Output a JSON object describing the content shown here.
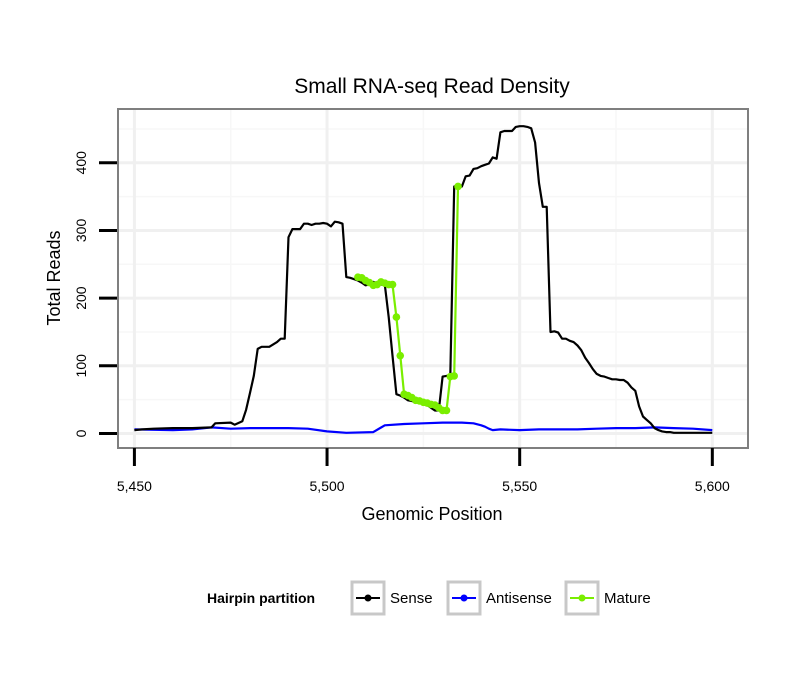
{
  "chart_data": {
    "type": "line",
    "title": "Small RNA-seq Read Density",
    "xlabel": "Genomic Position",
    "ylabel": "Total Reads",
    "xlim": [
      5446,
      5609
    ],
    "ylim": [
      -20,
      478
    ],
    "x_ticks": [
      5450,
      5500,
      5550,
      5600
    ],
    "x_tick_labels": [
      "5,450",
      "5,500",
      "5,550",
      "5,600"
    ],
    "y_ticks": [
      0,
      100,
      200,
      300,
      400
    ],
    "y_tick_labels": [
      "0",
      "100",
      "200",
      "300",
      "400"
    ],
    "grid": true,
    "legend": {
      "title": "Hairpin partition",
      "position": "bottom",
      "entries": [
        "Sense",
        "Antisense",
        "Mature"
      ]
    },
    "series": [
      {
        "name": "Sense",
        "color": "#000000",
        "x": [
          5450,
          5452,
          5455,
          5460,
          5465,
          5470,
          5471,
          5475,
          5476,
          5478,
          5479,
          5480,
          5481,
          5482,
          5483,
          5485,
          5487,
          5488,
          5489,
          5490,
          5491,
          5492,
          5493,
          5494,
          5495,
          5496,
          5497,
          5498,
          5499,
          5500,
          5501,
          5502,
          5503,
          5504,
          5505,
          5506,
          5508,
          5509,
          5510,
          5511,
          5512,
          5513,
          5514,
          5515,
          5516,
          5517,
          5518,
          5519,
          5520,
          5521,
          5522,
          5523,
          5524,
          5525,
          5526,
          5527,
          5528,
          5529,
          5530,
          5531,
          5532,
          5533,
          5534,
          5535,
          5536,
          5537,
          5538,
          5539,
          5540,
          5541,
          5542,
          5543,
          5544,
          5545,
          5546,
          5547,
          5548,
          5549,
          5550,
          5551,
          5552,
          5553,
          5554,
          5555,
          5556,
          5557,
          5558,
          5559,
          5560,
          5561,
          5562,
          5563,
          5564,
          5565,
          5566,
          5567,
          5568,
          5569,
          5570,
          5571,
          5572,
          5573,
          5574,
          5575,
          5576,
          5577,
          5578,
          5579,
          5580,
          5581,
          5582,
          5583,
          5584,
          5585,
          5586,
          5587,
          5588,
          5589,
          5590,
          5592,
          5595,
          5598,
          5600
        ],
        "y": [
          5,
          6,
          7,
          8,
          8,
          9,
          15,
          16,
          13,
          18,
          35,
          60,
          85,
          125,
          128,
          128,
          135,
          140,
          140,
          290,
          302,
          302,
          302,
          310,
          310,
          308,
          310,
          310,
          311,
          310,
          306,
          313,
          312,
          310,
          231,
          230,
          226,
          223,
          219,
          220,
          224,
          222,
          220,
          220,
          172,
          115,
          58,
          56,
          53,
          49,
          48,
          46,
          45,
          43,
          42,
          38,
          34,
          34,
          84,
          85,
          85,
          365,
          364,
          365,
          380,
          381,
          391,
          392,
          395,
          397,
          399,
          408,
          406,
          445,
          447,
          447,
          447,
          453,
          454,
          454,
          453,
          451,
          430,
          370,
          335,
          335,
          150,
          151,
          149,
          140,
          140,
          137,
          135,
          130,
          123,
          112,
          104,
          95,
          88,
          85,
          84,
          82,
          80,
          80,
          79,
          79,
          75,
          68,
          63,
          40,
          25,
          20,
          15,
          8,
          5,
          3,
          2,
          2,
          1,
          1,
          1,
          1,
          1
        ]
      },
      {
        "name": "Antisense",
        "color": "#0000ff",
        "x": [
          5450,
          5460,
          5465,
          5470,
          5475,
          5480,
          5490,
          5495,
          5500,
          5505,
          5512,
          5515,
          5520,
          5525,
          5530,
          5535,
          5538,
          5540,
          5541,
          5542,
          5543,
          5545,
          5550,
          5555,
          5560,
          5565,
          5570,
          5575,
          5580,
          5585,
          5590,
          5595,
          5600
        ],
        "y": [
          6,
          5,
          6,
          9,
          7,
          8,
          8,
          7,
          3,
          1,
          2,
          12,
          14,
          15,
          16,
          16,
          15,
          12,
          10,
          7,
          5,
          6,
          5,
          6,
          6,
          6,
          7,
          8,
          8,
          9,
          8,
          7,
          5
        ]
      },
      {
        "name": "Mature",
        "color": "#7aee00",
        "marker": "circle",
        "x": [
          5508,
          5509,
          5510,
          5511,
          5512,
          5513,
          5514,
          5515,
          5516,
          5517,
          5518,
          5519,
          5520,
          5521,
          5522,
          5523,
          5524,
          5525,
          5526,
          5527,
          5528,
          5529,
          5530,
          5531,
          5532,
          5533,
          5534
        ],
        "y": [
          231,
          230,
          226,
          223,
          219,
          220,
          224,
          222,
          220,
          220,
          172,
          115,
          58,
          56,
          53,
          49,
          48,
          46,
          45,
          43,
          42,
          38,
          34,
          34,
          84,
          85,
          365
        ]
      }
    ]
  }
}
